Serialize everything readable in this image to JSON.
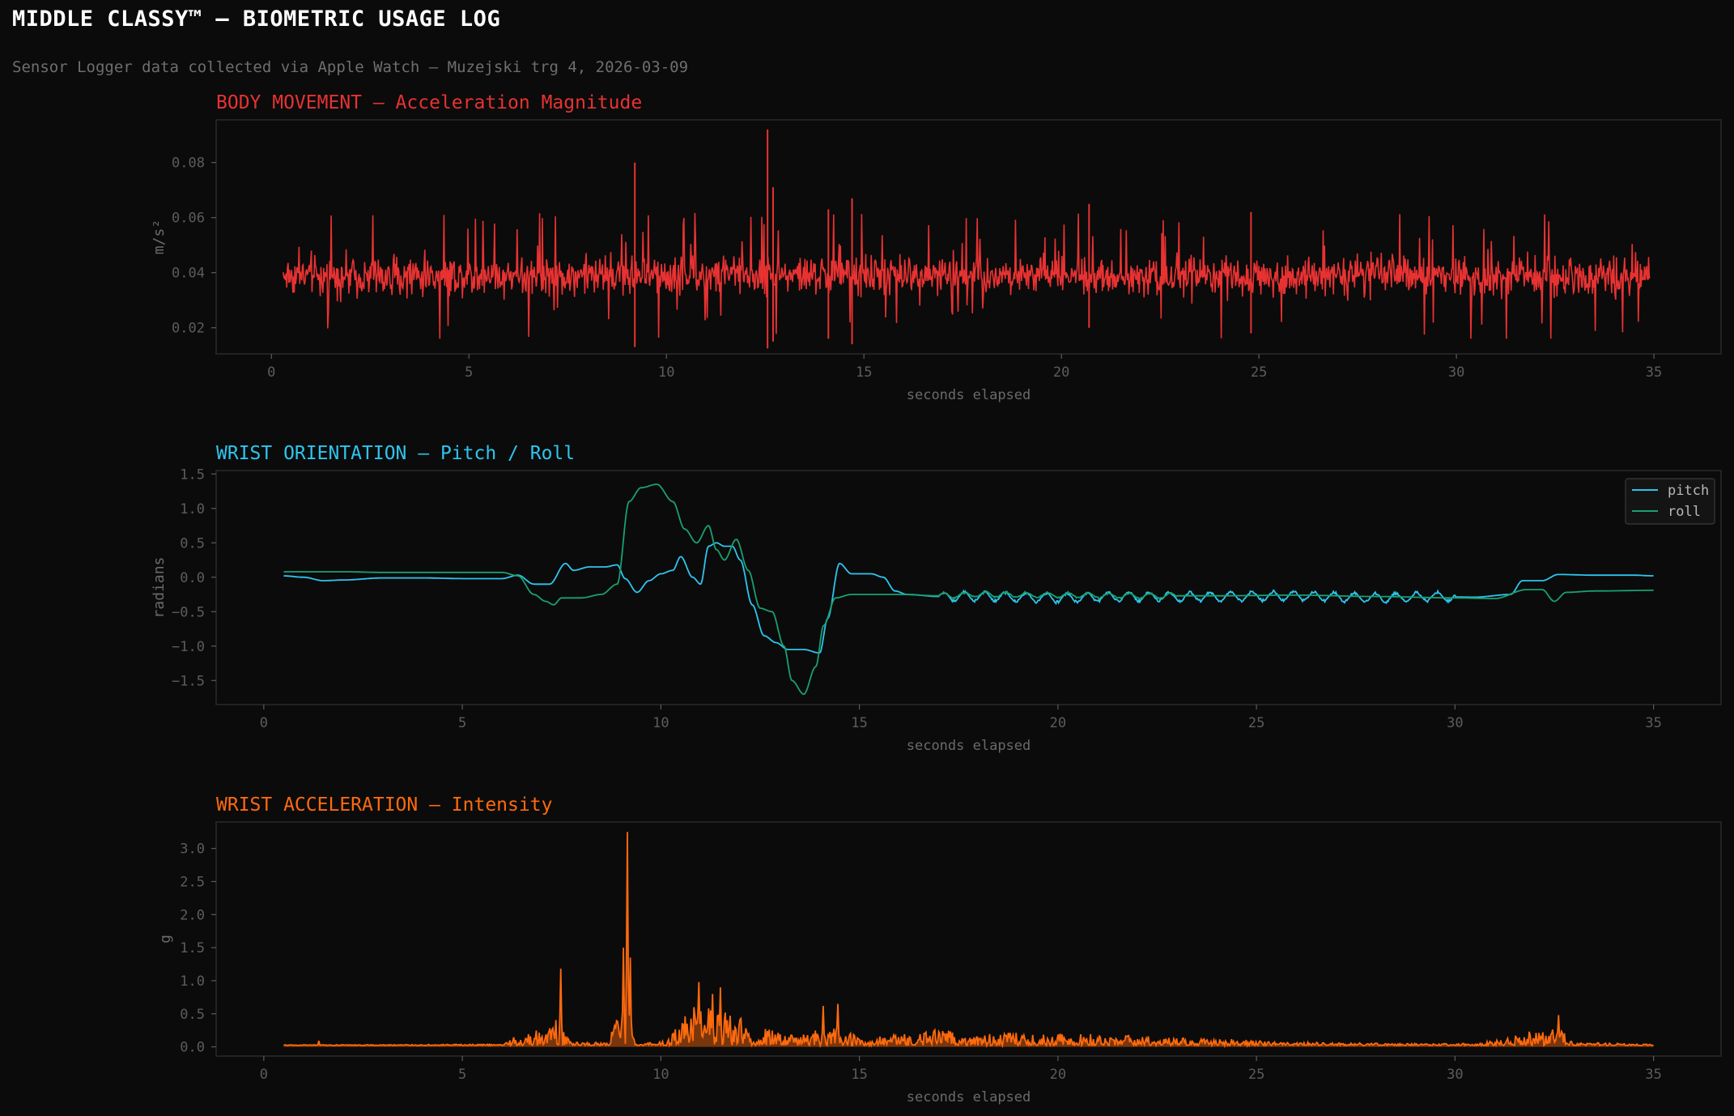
{
  "header": {
    "title": "MIDDLE CLASSY™ — BIOMETRIC USAGE LOG",
    "subtitle": "Sensor Logger data collected via Apple Watch — Muzejski trg 4, 2026-03-09"
  },
  "theme": {
    "background": "#0b0b0b",
    "panel_border": "#2a2a2a",
    "tick_color": "#5c5c5c",
    "label_color": "#6a6a6a"
  },
  "chart_data": [
    {
      "type": "line",
      "title": "BODY MOVEMENT — Acceleration Magnitude",
      "title_color": "#e83232",
      "xlabel": "seconds elapsed",
      "ylabel": "m/s²",
      "xlim": [
        -1.4,
        36.7
      ],
      "ylim": [
        0.0105,
        0.0955
      ],
      "xticks": [
        0,
        5,
        10,
        15,
        20,
        25,
        30,
        35
      ],
      "yticks": [
        0.02,
        0.04,
        0.06,
        0.08
      ],
      "ytick_labels": [
        "0.02",
        "0.04",
        "0.06",
        "0.08"
      ],
      "grid": false,
      "series": [
        {
          "color": "#e83232",
          "x_range": [
            0.3,
            34.9
          ],
          "sample_count": 2000,
          "baseline": 0.039,
          "noise_amplitude": 0.0055,
          "extreme_range": [
            0.014,
            0.067
          ],
          "spikes": [
            {
              "x": 9.2,
              "y": 0.08,
              "low": 0.013
            },
            {
              "x": 12.56,
              "y": 0.092,
              "low": 0.0125
            },
            {
              "x": 12.7,
              "y": 0.071,
              "low": 0.015
            },
            {
              "x": 14.7,
              "y": 0.067,
              "low": 0.014
            },
            {
              "x": 14.1,
              "y": 0.063,
              "low": 0.016
            },
            {
              "x": 20.7,
              "y": 0.065,
              "low": 0.02
            },
            {
              "x": 24.8,
              "y": 0.062,
              "low": 0.018
            }
          ]
        }
      ]
    },
    {
      "type": "line",
      "title": "WRIST ORIENTATION — Pitch / Roll",
      "title_color": "#2ec5ef",
      "xlabel": "seconds elapsed",
      "ylabel": "radians",
      "xlim": [
        -1.2,
        36.7
      ],
      "ylim": [
        -1.85,
        1.55
      ],
      "xticks": [
        0,
        5,
        10,
        15,
        20,
        25,
        30,
        35
      ],
      "yticks": [
        1.5,
        1.0,
        0.5,
        0.0,
        -0.5,
        -1.0,
        -1.5
      ],
      "ytick_labels": [
        "1.5",
        "1.0",
        "0.5",
        "0.0",
        "−0.5",
        "−1.0",
        "−1.5"
      ],
      "grid": false,
      "legend": "top-right",
      "series": [
        {
          "name": "pitch",
          "color": "#2ec5ef",
          "wiggle": [
            17.0,
            30.0,
            0.07
          ],
          "points": [
            [
              0.5,
              0.02
            ],
            [
              1.0,
              0.0
            ],
            [
              1.5,
              -0.05
            ],
            [
              2.0,
              -0.04
            ],
            [
              3.0,
              -0.01
            ],
            [
              4.0,
              -0.01
            ],
            [
              5.0,
              -0.02
            ],
            [
              6.0,
              -0.02
            ],
            [
              6.4,
              0.03
            ],
            [
              6.8,
              -0.1
            ],
            [
              7.2,
              -0.1
            ],
            [
              7.6,
              0.2
            ],
            [
              7.8,
              0.1
            ],
            [
              8.2,
              0.15
            ],
            [
              8.6,
              0.15
            ],
            [
              8.9,
              0.18
            ],
            [
              9.1,
              -0.02
            ],
            [
              9.4,
              -0.22
            ],
            [
              9.7,
              -0.05
            ],
            [
              10.0,
              0.05
            ],
            [
              10.3,
              0.1
            ],
            [
              10.5,
              0.3
            ],
            [
              10.8,
              0.0
            ],
            [
              11.0,
              -0.1
            ],
            [
              11.2,
              0.45
            ],
            [
              11.4,
              0.5
            ],
            [
              11.6,
              0.45
            ],
            [
              11.8,
              0.45
            ],
            [
              12.0,
              0.25
            ],
            [
              12.3,
              -0.4
            ],
            [
              12.6,
              -0.85
            ],
            [
              12.9,
              -0.95
            ],
            [
              13.2,
              -1.05
            ],
            [
              13.6,
              -1.05
            ],
            [
              14.0,
              -1.1
            ],
            [
              14.2,
              -0.6
            ],
            [
              14.5,
              0.2
            ],
            [
              14.8,
              0.05
            ],
            [
              15.0,
              0.05
            ],
            [
              15.3,
              0.05
            ],
            [
              15.6,
              0.0
            ],
            [
              15.9,
              -0.2
            ],
            [
              16.2,
              -0.25
            ],
            [
              17.0,
              -0.28
            ],
            [
              18.0,
              -0.28
            ],
            [
              20.0,
              -0.3
            ],
            [
              22.0,
              -0.28
            ],
            [
              24.0,
              -0.28
            ],
            [
              26.0,
              -0.27
            ],
            [
              28.0,
              -0.3
            ],
            [
              29.5,
              -0.28
            ],
            [
              30.5,
              -0.29
            ],
            [
              31.4,
              -0.25
            ],
            [
              31.7,
              -0.05
            ],
            [
              32.2,
              -0.05
            ],
            [
              32.6,
              0.04
            ],
            [
              33.5,
              0.03
            ],
            [
              34.5,
              0.03
            ],
            [
              35.0,
              0.02
            ]
          ]
        },
        {
          "name": "roll",
          "color": "#1aa070",
          "wiggle": [
            17.0,
            23.0,
            0.04
          ],
          "points": [
            [
              0.5,
              0.08
            ],
            [
              2.0,
              0.08
            ],
            [
              3.0,
              0.07
            ],
            [
              4.5,
              0.07
            ],
            [
              6.0,
              0.07
            ],
            [
              6.4,
              0.02
            ],
            [
              6.8,
              -0.25
            ],
            [
              7.1,
              -0.35
            ],
            [
              7.3,
              -0.4
            ],
            [
              7.5,
              -0.3
            ],
            [
              8.0,
              -0.3
            ],
            [
              8.5,
              -0.25
            ],
            [
              8.9,
              -0.1
            ],
            [
              9.2,
              1.1
            ],
            [
              9.5,
              1.3
            ],
            [
              9.9,
              1.35
            ],
            [
              10.3,
              1.1
            ],
            [
              10.6,
              0.7
            ],
            [
              10.9,
              0.5
            ],
            [
              11.2,
              0.75
            ],
            [
              11.4,
              0.4
            ],
            [
              11.6,
              0.25
            ],
            [
              11.9,
              0.55
            ],
            [
              12.2,
              0.1
            ],
            [
              12.5,
              -0.45
            ],
            [
              12.8,
              -0.5
            ],
            [
              13.1,
              -1.0
            ],
            [
              13.3,
              -1.5
            ],
            [
              13.6,
              -1.7
            ],
            [
              13.9,
              -1.3
            ],
            [
              14.1,
              -0.7
            ],
            [
              14.4,
              -0.3
            ],
            [
              14.8,
              -0.25
            ],
            [
              15.3,
              -0.25
            ],
            [
              16.0,
              -0.25
            ],
            [
              17.0,
              -0.27
            ],
            [
              18.0,
              -0.25
            ],
            [
              20.0,
              -0.26
            ],
            [
              22.0,
              -0.27
            ],
            [
              24.0,
              -0.27
            ],
            [
              26.0,
              -0.26
            ],
            [
              28.0,
              -0.28
            ],
            [
              30.0,
              -0.3
            ],
            [
              31.0,
              -0.31
            ],
            [
              31.8,
              -0.18
            ],
            [
              32.2,
              -0.18
            ],
            [
              32.5,
              -0.35
            ],
            [
              32.8,
              -0.22
            ],
            [
              33.5,
              -0.2
            ],
            [
              35.0,
              -0.19
            ]
          ]
        }
      ]
    },
    {
      "type": "area",
      "title": "WRIST ACCELERATION — Intensity",
      "title_color": "#ff6a0d",
      "xlabel": "seconds elapsed",
      "ylabel": "g",
      "xlim": [
        -1.2,
        36.7
      ],
      "ylim": [
        -0.14,
        3.4
      ],
      "xticks": [
        0,
        5,
        10,
        15,
        20,
        25,
        30,
        35
      ],
      "yticks": [
        0.0,
        0.5,
        1.0,
        1.5,
        2.0,
        2.5,
        3.0
      ],
      "ytick_labels": [
        "0.0",
        "0.5",
        "1.0",
        "1.5",
        "2.0",
        "2.5",
        "3.0"
      ],
      "grid": false,
      "series": [
        {
          "color": "#ff6a0d",
          "x_range": [
            0.5,
            35.0
          ],
          "sample_count": 1400,
          "baseline": 0.02,
          "envelope": [
            [
              0.5,
              0.01
            ],
            [
              6.0,
              0.02
            ],
            [
              6.2,
              0.12
            ],
            [
              7.0,
              0.25
            ],
            [
              7.4,
              0.4
            ],
            [
              7.8,
              0.05
            ],
            [
              8.7,
              0.05
            ],
            [
              8.8,
              0.45
            ],
            [
              9.3,
              0.3
            ],
            [
              9.4,
              0.02
            ],
            [
              10.0,
              0.08
            ],
            [
              10.9,
              0.6
            ],
            [
              11.6,
              0.55
            ],
            [
              12.4,
              0.3
            ],
            [
              13.4,
              0.15
            ],
            [
              14.4,
              0.4
            ],
            [
              15.2,
              0.05
            ],
            [
              15.6,
              0.15
            ],
            [
              17.0,
              0.25
            ],
            [
              18.0,
              0.2
            ],
            [
              20.0,
              0.2
            ],
            [
              22.0,
              0.15
            ],
            [
              24.0,
              0.1
            ],
            [
              26.0,
              0.05
            ],
            [
              29.0,
              0.03
            ],
            [
              30.5,
              0.03
            ],
            [
              31.0,
              0.08
            ],
            [
              32.1,
              0.25
            ],
            [
              32.6,
              0.3
            ],
            [
              33.0,
              0.05
            ],
            [
              35.0,
              0.02
            ]
          ],
          "spikes": [
            [
              7.48,
              1.18
            ],
            [
              9.05,
              1.5
            ],
            [
              9.15,
              3.25
            ],
            [
              9.22,
              1.35
            ],
            [
              10.95,
              0.98
            ],
            [
              11.5,
              0.9
            ],
            [
              11.3,
              0.8
            ],
            [
              14.1,
              0.62
            ],
            [
              14.45,
              0.65
            ],
            [
              32.6,
              0.48
            ],
            [
              1.4,
              0.09
            ]
          ]
        }
      ]
    }
  ]
}
